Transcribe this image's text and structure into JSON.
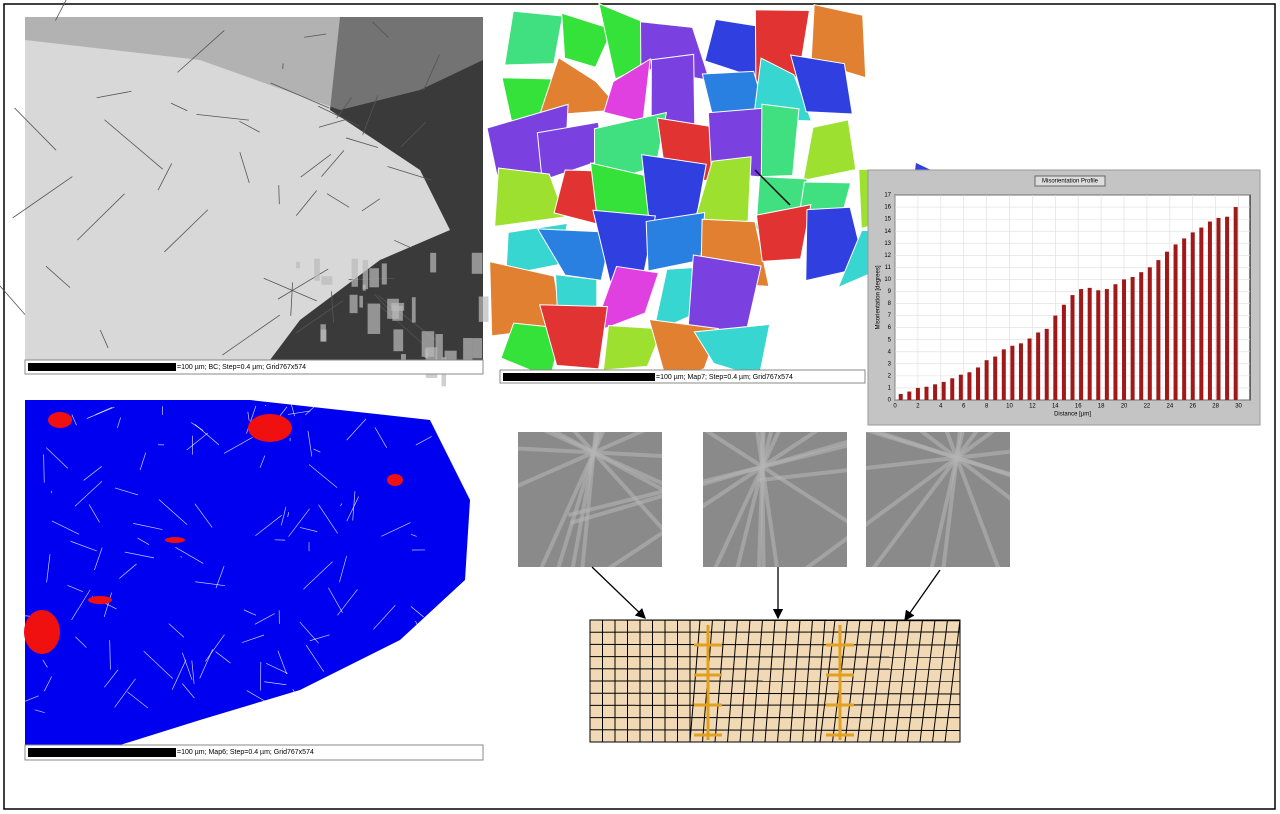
{
  "panels": {
    "bc_caption": "=100 µm; BC; Step=0.4 µm; Grid767x574",
    "map7_caption": "=100 µm; Map7; Step=0.4 µm; Grid767x574",
    "map6_caption": "=100 µm; Map6; Step=0.4 µm; Grid767x574"
  },
  "chart_data": {
    "type": "bar",
    "title": "Misorientation Profile",
    "x_label": "Distance [µm]",
    "y_label": "Misorientation [degrees]",
    "x": [
      0.5,
      1.25,
      2,
      2.75,
      3.5,
      4.25,
      5,
      5.75,
      6.5,
      7.25,
      8,
      8.75,
      9.5,
      10.25,
      11,
      11.75,
      12.5,
      13.25,
      14,
      14.75,
      15.5,
      16.25,
      17,
      17.75,
      18.5,
      19.25,
      20,
      20.75,
      21.5,
      22.25,
      23,
      23.75,
      24.5,
      25.25,
      26,
      26.75,
      27.5,
      28.25,
      29,
      29.75
    ],
    "values": [
      0.5,
      0.7,
      1.0,
      1.1,
      1.3,
      1.5,
      1.8,
      2.1,
      2.3,
      2.7,
      3.3,
      3.6,
      4.2,
      4.5,
      4.7,
      5.1,
      5.6,
      5.9,
      7.0,
      7.9,
      8.7,
      9.2,
      9.3,
      9.1,
      9.2,
      9.6,
      10.0,
      10.2,
      10.6,
      11.0,
      11.6,
      12.3,
      12.9,
      13.4,
      13.9,
      14.3,
      14.8,
      15.1,
      15.2,
      16.0
    ],
    "color": "#a01818",
    "xlim": [
      0,
      31
    ],
    "ylim": [
      0,
      17
    ],
    "xticks": [
      0,
      2,
      4,
      6,
      8,
      10,
      12,
      14,
      16,
      18,
      20,
      22,
      24,
      26,
      28,
      30
    ],
    "yticks": [
      0,
      1,
      2,
      3,
      4,
      5,
      6,
      7,
      8,
      9,
      10,
      11,
      12,
      13,
      14,
      15,
      16,
      17
    ],
    "grid": true
  }
}
